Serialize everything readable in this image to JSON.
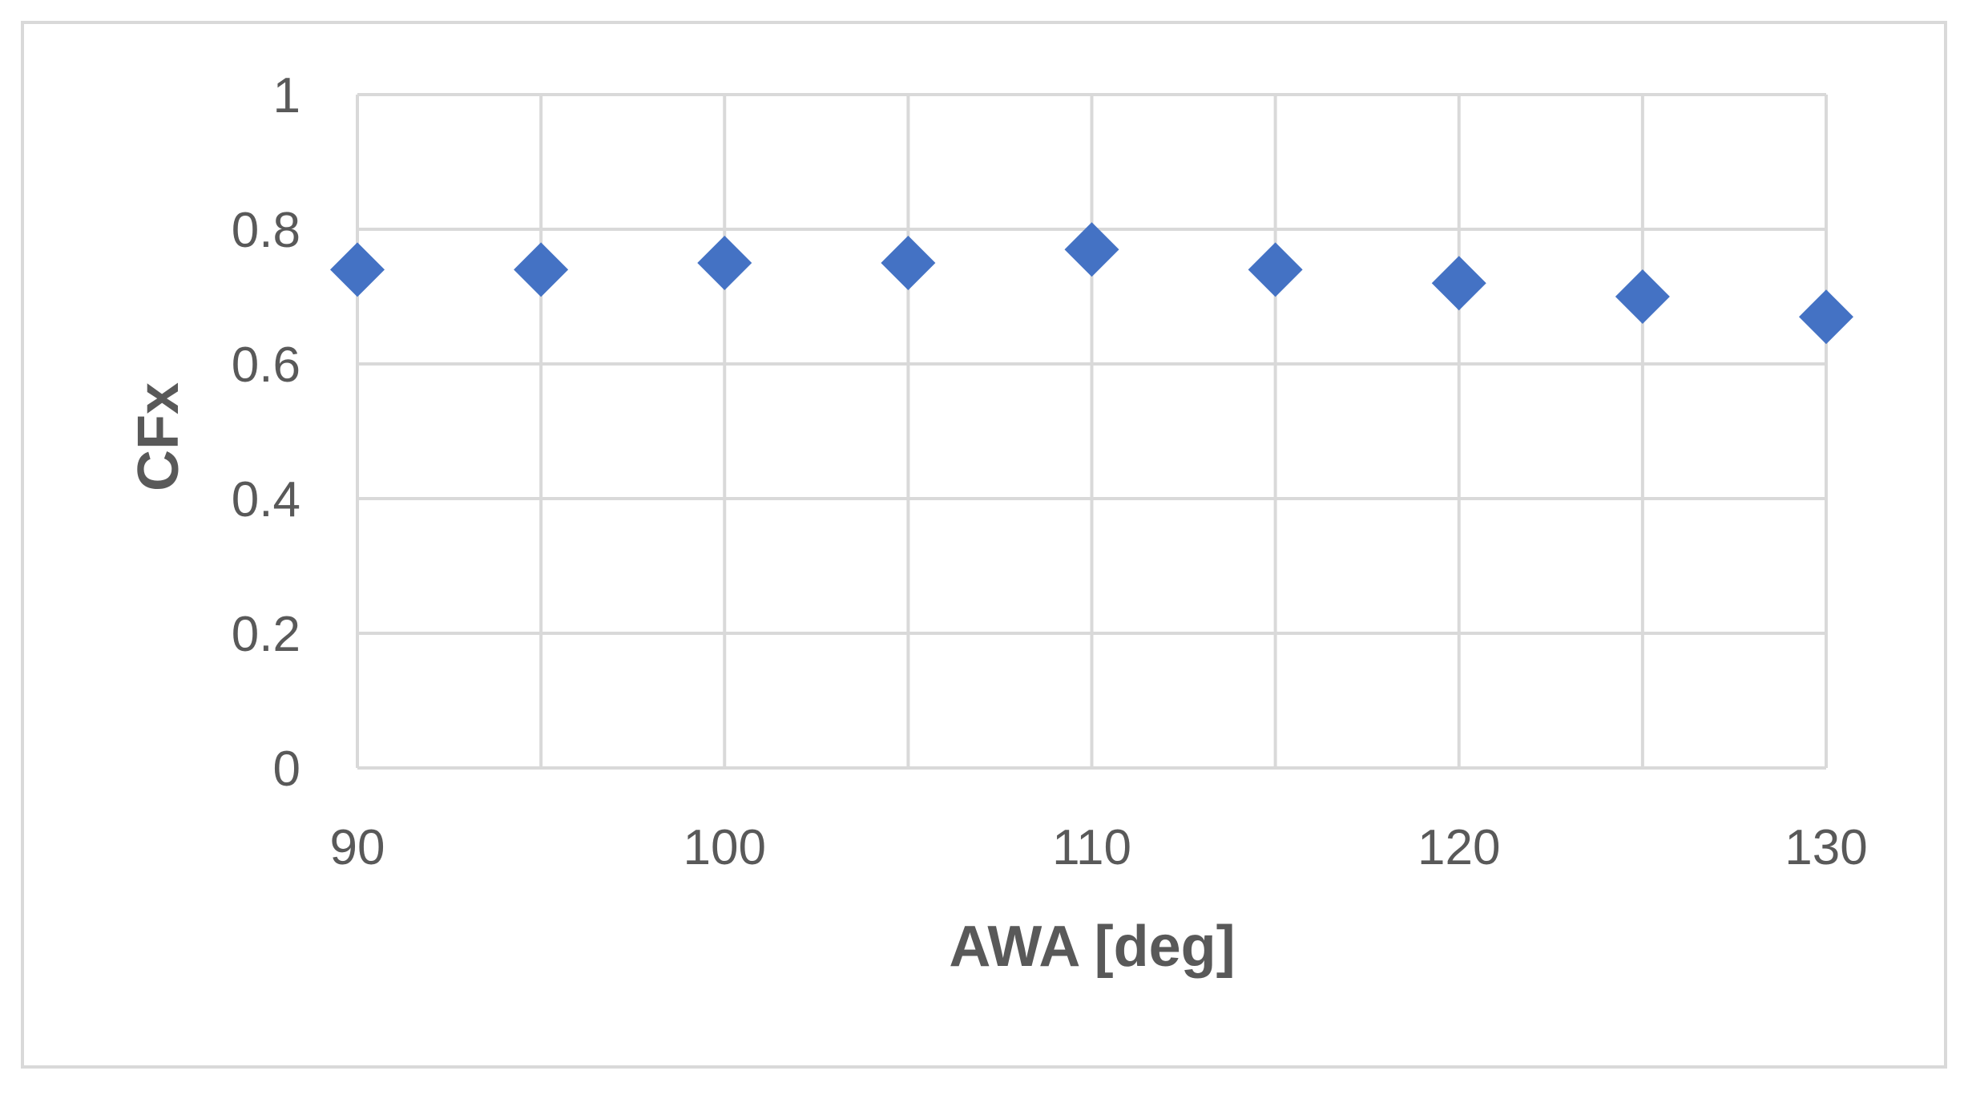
{
  "chart_data": {
    "type": "scatter",
    "title": "",
    "xlabel": "AWA [deg]",
    "ylabel": "CFx",
    "xlim": [
      90,
      130
    ],
    "ylim": [
      0,
      1
    ],
    "x_ticks": [
      90,
      100,
      110,
      120,
      130
    ],
    "x_tick_labels": [
      "90",
      "100",
      "110",
      "120",
      "130"
    ],
    "x_minor_gridlines": [
      95,
      105,
      115,
      125
    ],
    "y_ticks": [
      0,
      0.2,
      0.4,
      0.6,
      0.8,
      1
    ],
    "y_tick_labels": [
      "0",
      "0.2",
      "0.4",
      "0.6",
      "0.8",
      "1"
    ],
    "grid": true,
    "legend": "none",
    "marker": "diamond",
    "colors": {
      "marker": "#4472C4",
      "grid": "#D9D9D9",
      "axis": "#D9D9D9",
      "text": "#595959",
      "frame": "#D9D9D9"
    },
    "series": [
      {
        "x": [
          90,
          95,
          100,
          105,
          110,
          115,
          120,
          125,
          130
        ],
        "y": [
          0.74,
          0.74,
          0.75,
          0.75,
          0.77,
          0.74,
          0.72,
          0.7,
          0.67
        ]
      }
    ]
  }
}
